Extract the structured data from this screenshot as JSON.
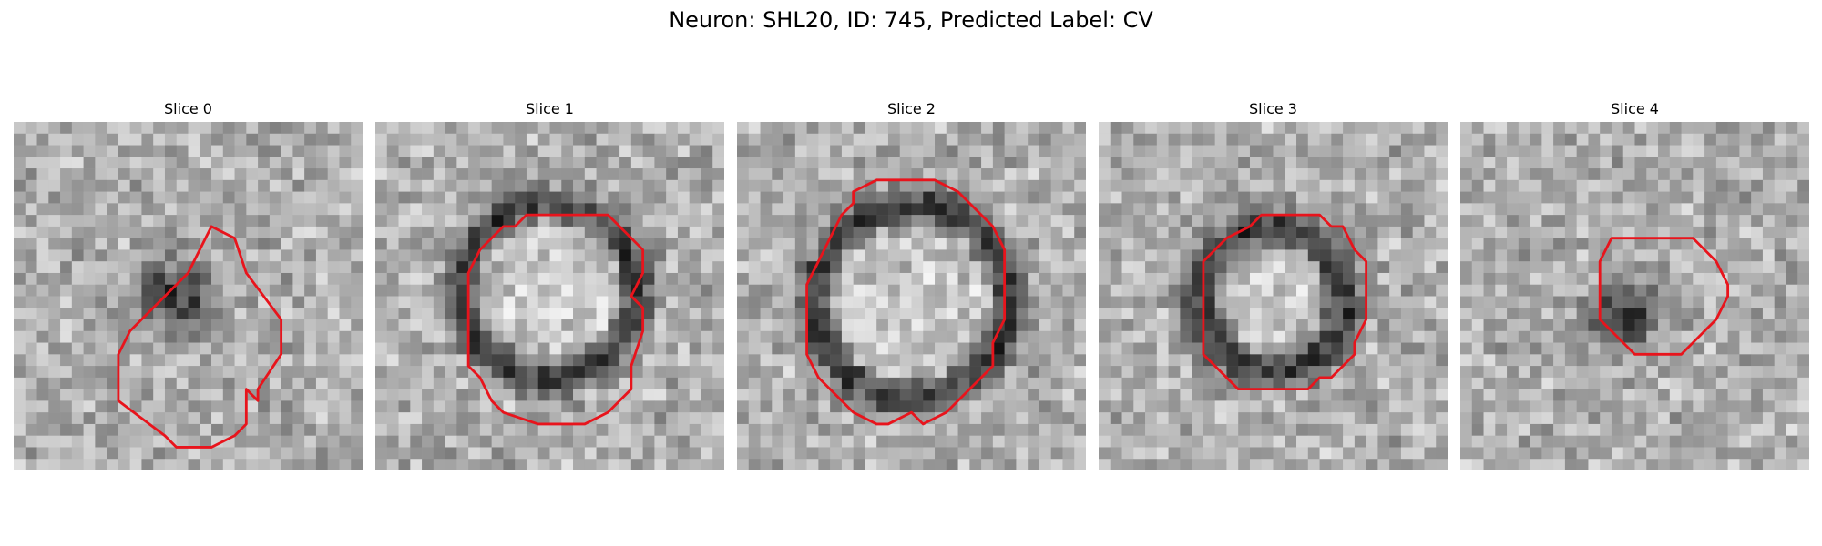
{
  "figure": {
    "title": "Neuron: SHL20, ID: 745, Predicted Label: CV"
  },
  "panels": [
    {
      "title": "Slice 0",
      "structure": "blob",
      "center": [
        14,
        15
      ],
      "radius": 3.2,
      "outline": [
        [
          17,
          9
        ],
        [
          19,
          10
        ],
        [
          20,
          13
        ],
        [
          23,
          17
        ],
        [
          23,
          20
        ],
        [
          21,
          23
        ],
        [
          21,
          24
        ],
        [
          20,
          23
        ],
        [
          20,
          26
        ],
        [
          19,
          27
        ],
        [
          17,
          28
        ],
        [
          14,
          28
        ],
        [
          13,
          27
        ],
        [
          9,
          24
        ],
        [
          9,
          20
        ],
        [
          10,
          18
        ],
        [
          13,
          15
        ],
        [
          15,
          13
        ],
        [
          16,
          11
        ]
      ]
    },
    {
      "title": "Slice 1",
      "structure": "ring",
      "center": [
        15,
        14.5
      ],
      "radius": 7.5,
      "thickness": 1.4,
      "outline": [
        [
          15,
          8
        ],
        [
          20,
          8
        ],
        [
          21,
          9
        ],
        [
          22,
          10
        ],
        [
          23,
          11
        ],
        [
          23,
          13
        ],
        [
          22,
          15
        ],
        [
          23,
          16
        ],
        [
          23,
          18
        ],
        [
          22,
          21
        ],
        [
          22,
          23
        ],
        [
          21,
          24
        ],
        [
          20,
          25
        ],
        [
          18,
          26
        ],
        [
          15,
          26
        ],
        [
          14,
          26
        ],
        [
          11,
          25
        ],
        [
          10,
          24
        ],
        [
          9,
          22
        ],
        [
          8,
          21
        ],
        [
          8,
          19
        ],
        [
          8,
          16
        ],
        [
          8,
          13
        ],
        [
          9,
          11
        ],
        [
          10,
          10
        ],
        [
          11,
          9
        ],
        [
          12,
          9
        ],
        [
          13,
          8
        ]
      ]
    },
    {
      "title": "Slice 2",
      "structure": "ring",
      "center": [
        15,
        15.5
      ],
      "radius": 8.3,
      "thickness": 1.5,
      "outline": [
        [
          10,
          6
        ],
        [
          12,
          5
        ],
        [
          17,
          5
        ],
        [
          19,
          6
        ],
        [
          20,
          7
        ],
        [
          21,
          8
        ],
        [
          22,
          9
        ],
        [
          23,
          11
        ],
        [
          23,
          17
        ],
        [
          22,
          19
        ],
        [
          22,
          21
        ],
        [
          21,
          22
        ],
        [
          20,
          23
        ],
        [
          19,
          24
        ],
        [
          18,
          25
        ],
        [
          16,
          26
        ],
        [
          15,
          25
        ],
        [
          13,
          26
        ],
        [
          12,
          26
        ],
        [
          10,
          25
        ],
        [
          9,
          24
        ],
        [
          8,
          23
        ],
        [
          7,
          22
        ],
        [
          6,
          20
        ],
        [
          6,
          14
        ],
        [
          7,
          12
        ],
        [
          8,
          10
        ],
        [
          9,
          8
        ],
        [
          10,
          7
        ]
      ]
    },
    {
      "title": "Slice 3",
      "structure": "ring",
      "center": [
        15,
        15.3
      ],
      "radius": 6.2,
      "thickness": 1.6,
      "outline": [
        [
          15,
          8
        ],
        [
          19,
          8
        ],
        [
          20,
          9
        ],
        [
          21,
          9
        ],
        [
          22,
          11
        ],
        [
          23,
          12
        ],
        [
          23,
          17
        ],
        [
          22,
          19
        ],
        [
          22,
          20
        ],
        [
          21,
          21
        ],
        [
          20,
          22
        ],
        [
          19,
          22
        ],
        [
          18,
          23
        ],
        [
          14,
          23
        ],
        [
          12,
          23
        ],
        [
          11,
          22
        ],
        [
          10,
          21
        ],
        [
          9,
          20
        ],
        [
          9,
          19
        ],
        [
          9,
          16
        ],
        [
          9,
          14
        ],
        [
          9,
          12
        ],
        [
          10,
          11
        ],
        [
          11,
          10
        ],
        [
          13,
          9
        ],
        [
          14,
          8
        ]
      ]
    },
    {
      "title": "Slice 4",
      "structure": "blob",
      "center": [
        14,
        16.5
      ],
      "radius": 3.0,
      "outline": [
        [
          13,
          10
        ],
        [
          20,
          10
        ],
        [
          21,
          11
        ],
        [
          22,
          12
        ],
        [
          23,
          14
        ],
        [
          23,
          15
        ],
        [
          22,
          17
        ],
        [
          21,
          18
        ],
        [
          20,
          19
        ],
        [
          19,
          20
        ],
        [
          15,
          20
        ],
        [
          14,
          19
        ],
        [
          13,
          18
        ],
        [
          12,
          17
        ],
        [
          12,
          15
        ],
        [
          12,
          12
        ]
      ]
    }
  ],
  "colors": {
    "outline": "#e8141c",
    "background": "#ffffff"
  }
}
